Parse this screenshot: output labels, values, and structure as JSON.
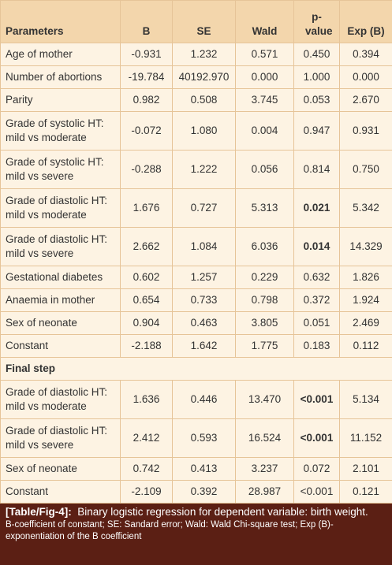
{
  "table": {
    "header": [
      "Parameters",
      "B",
      "SE",
      "Wald",
      "p-value",
      "Exp (B)"
    ],
    "rows": [
      [
        "Age of mother",
        "-0.931",
        "1.232",
        "0.571",
        "0.450",
        "0.394"
      ],
      [
        "Number of abortions",
        "-19.784",
        "40192.970",
        "0.000",
        "1.000",
        "0.000"
      ],
      [
        "Parity",
        "0.982",
        "0.508",
        "3.745",
        "0.053",
        "2.670"
      ],
      [
        "Grade of systolic HT: mild vs moderate",
        "-0.072",
        "1.080",
        "0.004",
        "0.947",
        "0.931"
      ],
      [
        "Grade of systolic HT: mild vs severe",
        "-0.288",
        "1.222",
        "0.056",
        "0.814",
        "0.750"
      ],
      [
        "Grade of diastolic HT: mild vs moderate",
        "1.676",
        "0.727",
        "5.313",
        "0.021",
        "5.342"
      ],
      [
        "Grade of diastolic HT: mild vs severe",
        "2.662",
        "1.084",
        "6.036",
        "0.014",
        "14.329"
      ],
      [
        "Gestational diabetes",
        "0.602",
        "1.257",
        "0.229",
        "0.632",
        "1.826"
      ],
      [
        "Anaemia in mother",
        "0.654",
        "0.733",
        "0.798",
        "0.372",
        "1.924"
      ],
      [
        "Sex of neonate",
        "0.904",
        "0.463",
        "3.805",
        "0.051",
        "2.469"
      ],
      [
        "Constant",
        "-2.188",
        "1.642",
        "1.775",
        "0.183",
        "0.112"
      ]
    ],
    "section": "Final step",
    "final_rows": [
      [
        "Grade of diastolic HT: mild vs moderate",
        "1.636",
        "0.446",
        "13.470",
        "<0.001",
        "5.134"
      ],
      [
        "Grade of diastolic HT: mild vs severe",
        "2.412",
        "0.593",
        "16.524",
        "<0.001",
        "11.152"
      ],
      [
        "Sex of neonate",
        "0.742",
        "0.413",
        "3.237",
        "0.072",
        "2.101"
      ],
      [
        "Constant",
        "-2.109",
        "0.392",
        "28.987",
        "<0.001",
        "0.121"
      ]
    ]
  },
  "caption": {
    "label": "[Table/Fig-4]:",
    "text": "Binary logistic regression for dependent variable: birth weight.",
    "notes": "B-coefficient of constant; SE: Sandard error; Wald: Wald Chi-square test; Exp (B)-exponentiation of the B coefficient"
  }
}
